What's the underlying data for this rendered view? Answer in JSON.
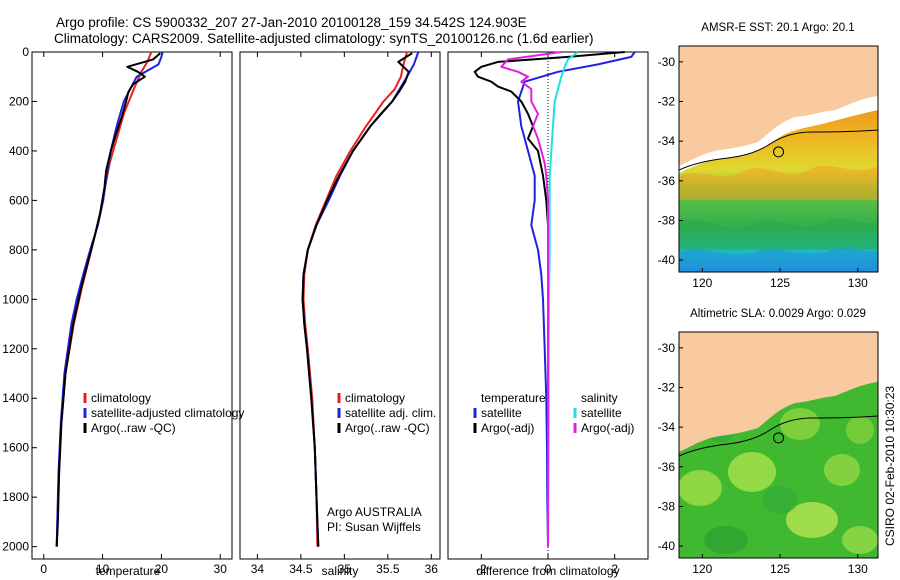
{
  "header": {
    "line1": "Argo profile: CS 5900332_207 27-Jan-2010 20100128_159 34.542S 124.903E",
    "line2": "Climatology: CARS2009. Satellite-adjusted climatology: synTS_20100126.nc (1.6d earlier)"
  },
  "footer": {
    "credit_lines": [
      "Argo AUSTRALIA",
      "PI: Susan Wijffels"
    ],
    "timestamp": "CSIRO 02-Feb-2010 10:30:23"
  },
  "colors": {
    "climatology": "#e8201c",
    "satellite": "#2020e0",
    "argo": "#000000",
    "satellite_diff": "#20e0e0",
    "argo_adj": "#e020e0",
    "land": "#f9c9a0"
  },
  "chart_data": [
    {
      "id": "temperature",
      "type": "line",
      "xlabel": "temperature",
      "xlim": [
        -2,
        32
      ],
      "ylim": [
        2050,
        0
      ],
      "xticks": [
        0,
        10,
        20,
        30
      ],
      "yticks": [
        0,
        200,
        400,
        600,
        800,
        1000,
        1200,
        1400,
        1600,
        1800,
        2000
      ],
      "legend": [
        "climatology",
        "satellite-adjusted climatology",
        "Argo(..raw -QC)"
      ],
      "series": [
        {
          "name": "climatology",
          "color": "#e8201c",
          "depth": [
            0,
            40,
            80,
            150,
            250,
            350,
            450,
            550,
            650,
            800,
            950,
            1100,
            1300,
            1500,
            1700,
            1900,
            2000
          ],
          "values": [
            18.3,
            17.6,
            16.6,
            15.3,
            13.6,
            12.4,
            11.2,
            10.4,
            9.6,
            8.1,
            6.5,
            5.1,
            3.7,
            3.0,
            2.6,
            2.3,
            2.2
          ]
        },
        {
          "name": "satellite",
          "color": "#2020e0",
          "depth": [
            0,
            20,
            50,
            100,
            200,
            300,
            400,
            500,
            600,
            700,
            800,
            900,
            1000,
            1100,
            1300,
            1500,
            1700,
            1900,
            2000
          ],
          "values": [
            20.2,
            20.0,
            19.5,
            15.8,
            13.6,
            12.4,
            11.4,
            10.7,
            10.1,
            9.2,
            7.9,
            6.7,
            5.6,
            4.7,
            3.5,
            2.9,
            2.5,
            2.3,
            2.2
          ]
        },
        {
          "name": "Argo",
          "color": "#000000",
          "depth": [
            5,
            30,
            60,
            80,
            100,
            130,
            160,
            200,
            260,
            330,
            400,
            480,
            550,
            650,
            750,
            850,
            950,
            1100,
            1300,
            1500,
            1700,
            1900,
            2000
          ],
          "values": [
            19.8,
            18.6,
            14.2,
            16.0,
            17.2,
            15.2,
            14.4,
            14.0,
            13.3,
            12.3,
            11.4,
            10.6,
            10.3,
            9.6,
            8.6,
            7.5,
            6.4,
            5.0,
            3.7,
            3.0,
            2.6,
            2.4,
            2.2
          ]
        }
      ]
    },
    {
      "id": "salinity",
      "type": "line",
      "xlabel": "salinity",
      "xlim": [
        33.8,
        36.1
      ],
      "ylim": [
        2050,
        0
      ],
      "xticks": [
        34,
        34.5,
        35,
        35.5,
        36
      ],
      "xticklabels": [
        "34",
        "34.5",
        "35",
        "35.5",
        "36"
      ],
      "legend": [
        "climatology",
        "satellite adj. clim.",
        "Argo(..raw -QC)"
      ],
      "series": [
        {
          "name": "climatology",
          "color": "#e8201c",
          "depth": [
            0,
            50,
            100,
            150,
            200,
            300,
            400,
            500,
            600,
            700,
            800,
            900,
            1000,
            1100,
            1200,
            1400,
            1600,
            1800,
            2000
          ],
          "values": [
            35.72,
            35.68,
            35.65,
            35.58,
            35.45,
            35.25,
            35.07,
            34.91,
            34.79,
            34.67,
            34.58,
            34.54,
            34.53,
            34.55,
            34.58,
            34.63,
            34.66,
            34.68,
            34.69
          ]
        },
        {
          "name": "satellite",
          "color": "#2020e0",
          "depth": [
            0,
            50,
            100,
            200,
            300,
            400,
            500,
            600,
            700,
            800,
            900,
            1000,
            1100,
            1200,
            1400,
            1600,
            1800,
            2000
          ],
          "values": [
            35.85,
            35.8,
            35.72,
            35.55,
            35.3,
            35.1,
            34.95,
            34.82,
            34.68,
            34.58,
            34.53,
            34.52,
            34.54,
            34.57,
            34.62,
            34.66,
            34.68,
            34.7
          ]
        },
        {
          "name": "Argo",
          "color": "#000000",
          "depth": [
            5,
            40,
            80,
            120,
            160,
            200,
            250,
            300,
            400,
            500,
            600,
            700,
            800,
            900,
            1000,
            1100,
            1200,
            1400,
            1600,
            1800,
            2000
          ],
          "values": [
            35.78,
            35.62,
            35.74,
            35.7,
            35.63,
            35.55,
            35.42,
            35.3,
            35.1,
            34.94,
            34.8,
            34.68,
            34.58,
            34.53,
            34.52,
            34.54,
            34.57,
            34.62,
            34.66,
            34.68,
            34.7
          ]
        }
      ]
    },
    {
      "id": "difference",
      "type": "line",
      "xlabel": "difference from climatology",
      "xlim": [
        -3,
        3
      ],
      "ylim": [
        2050,
        0
      ],
      "xticks": [
        -2,
        0,
        2
      ],
      "legend_left": [
        "temperature",
        "satellite",
        "Argo(-adj)"
      ],
      "legend_right": [
        "salinity",
        "satellite",
        "Argo(-adj)"
      ],
      "series": [
        {
          "name": "temperature satellite",
          "color": "#2020e0",
          "depth": [
            0,
            20,
            50,
            80,
            120,
            200,
            300,
            400,
            500,
            600,
            700,
            800,
            900,
            1000,
            1200,
            1400,
            1600,
            1800,
            2000
          ],
          "values": [
            2.6,
            2.5,
            1.5,
            0.3,
            -0.7,
            -0.9,
            -0.8,
            -0.6,
            -0.4,
            -0.4,
            -0.5,
            -0.3,
            -0.2,
            -0.15,
            -0.1,
            -0.05,
            -0.03,
            -0.02,
            0.0
          ]
        },
        {
          "name": "temperature Argo",
          "color": "#000000",
          "depth": [
            0,
            20,
            40,
            60,
            80,
            100,
            120,
            140,
            160,
            200,
            250,
            300,
            350,
            400,
            500,
            600,
            700,
            800,
            1000,
            1200,
            1500,
            1800,
            2000
          ],
          "values": [
            2.3,
            0.6,
            -1.5,
            -2.0,
            -2.2,
            -2.1,
            -1.7,
            -1.5,
            -1.1,
            -0.8,
            -0.6,
            -0.45,
            -0.6,
            -0.3,
            -0.15,
            -0.05,
            0.0,
            0.0,
            0.0,
            0.0,
            0.0,
            0.0,
            0.0
          ]
        },
        {
          "name": "salinity satellite",
          "color": "#20e0e0",
          "depth": [
            0,
            30,
            60,
            100,
            150,
            200,
            300,
            400,
            500,
            600,
            800,
            1000,
            1200,
            1500,
            1800,
            2000
          ],
          "values": [
            0.9,
            0.6,
            0.5,
            0.4,
            0.3,
            0.2,
            0.15,
            0.1,
            0.05,
            0.05,
            0.05,
            0.03,
            0.02,
            0.02,
            0.01,
            0.0
          ]
        },
        {
          "name": "salinity Argo",
          "color": "#e020e0",
          "depth": [
            0,
            30,
            60,
            80,
            100,
            120,
            150,
            200,
            250,
            300,
            350,
            400,
            450,
            500,
            600,
            800,
            1000,
            1200,
            1500,
            2000
          ],
          "values": [
            0.4,
            -1.2,
            -1.4,
            -0.9,
            -0.6,
            -0.8,
            -0.5,
            -0.5,
            -0.3,
            -0.45,
            -0.3,
            -0.2,
            -0.1,
            -0.05,
            0.0,
            0.0,
            0.0,
            0.0,
            0.0,
            0.0
          ]
        }
      ]
    },
    {
      "id": "sst_map",
      "type": "heatmap",
      "title": "AMSR-E SST: 20.1 Argo: 20.1",
      "xlim": [
        118.5,
        131.3
      ],
      "ylim": [
        -40.6,
        -29.2
      ],
      "xticks": [
        120,
        125,
        130
      ],
      "yticks": [
        -30,
        -32,
        -34,
        -36,
        -38,
        -40
      ],
      "float_position": {
        "lon": 124.903,
        "lat": -34.542
      }
    },
    {
      "id": "sla_map",
      "type": "heatmap",
      "title": "Altimetric SLA: 0.0029 Argo: 0.029",
      "xlim": [
        118.5,
        131.3
      ],
      "ylim": [
        -40.6,
        -29.2
      ],
      "xticks": [
        120,
        125,
        130
      ],
      "yticks": [
        -30,
        -32,
        -34,
        -36,
        -38,
        -40
      ],
      "float_position": {
        "lon": 124.903,
        "lat": -34.542
      }
    }
  ]
}
